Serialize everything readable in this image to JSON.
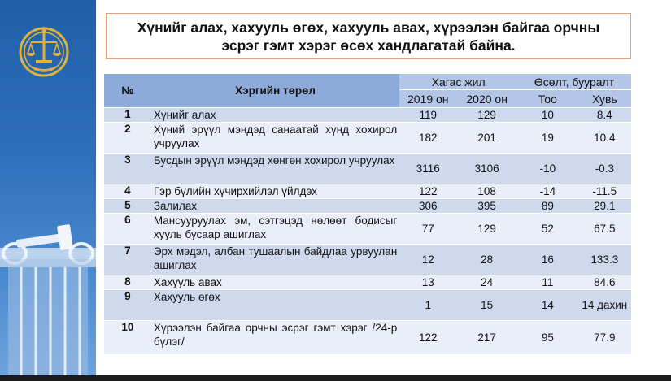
{
  "title": {
    "line1": "Хүнийг алах, хахууль өгөх, хахууль авах, хүрээлэн байгаа орчны",
    "line2": "эсрэг гэмт хэрэг өсөх хандлагатай байна."
  },
  "table": {
    "headers": {
      "number": "№",
      "type": "Хэргийн төрөл",
      "period_group": "Хагас жил",
      "change_group": "Өсөлт, бууралт",
      "year1": "2019 он",
      "year2": "2020 он",
      "count": "Тоо",
      "percent": "Хувь"
    },
    "rows": [
      {
        "no": "1",
        "type": "Хүнийг алах",
        "y2019": "119",
        "y2020": "129",
        "count": "10",
        "percent": "8.4"
      },
      {
        "no": "2",
        "type": "Хүний эрүүл мэндэд санаатай хүнд хохирол учруулах",
        "y2019": "182",
        "y2020": "201",
        "count": "19",
        "percent": "10.4"
      },
      {
        "no": "3",
        "type": "Бусдын эрүүл мэндэд хөнгөн хохирол учруулах",
        "y2019": "3116",
        "y2020": "3106",
        "count": "-10",
        "percent": "-0.3"
      },
      {
        "no": "4",
        "type": "Гэр бүлийн хүчирхийлэл үйлдэх",
        "y2019": "122",
        "y2020": "108",
        "count": "-14",
        "percent": "-11.5"
      },
      {
        "no": "5",
        "type": "Залилах",
        "y2019": "306",
        "y2020": "395",
        "count": "89",
        "percent": "29.1"
      },
      {
        "no": "6",
        "type": "Мансууруулах эм, сэтгэцэд нөлөөт бодисыг хууль бусаар ашиглах",
        "y2019": "77",
        "y2020": "129",
        "count": "52",
        "percent": "67.5"
      },
      {
        "no": "7",
        "type": "Эрх мэдэл, албан тушаалын байдлаа урвуулан ашиглах",
        "y2019": "12",
        "y2020": "28",
        "count": "16",
        "percent": "133.3"
      },
      {
        "no": "8",
        "type": "Хахууль авах",
        "y2019": "13",
        "y2020": "24",
        "count": "11",
        "percent": "84.6"
      },
      {
        "no": "9",
        "type": "Хахууль өгөх",
        "y2019": "1",
        "y2020": "15",
        "count": "14",
        "percent": "14 дахин"
      },
      {
        "no": "10",
        "type": "Хүрээлэн байгаа орчны эсрэг гэмт хэрэг /24-р бүлэг/",
        "y2019": "122",
        "y2020": "217",
        "count": "95",
        "percent": "77.9"
      }
    ]
  },
  "colors": {
    "sidebar": "#2e6fba",
    "header": "#b4c6e7",
    "row_dark": "#cfd9ee",
    "row_light": "#e9eef8",
    "title_border": "#e8a07a",
    "logo_gold": "#e0b43c"
  }
}
